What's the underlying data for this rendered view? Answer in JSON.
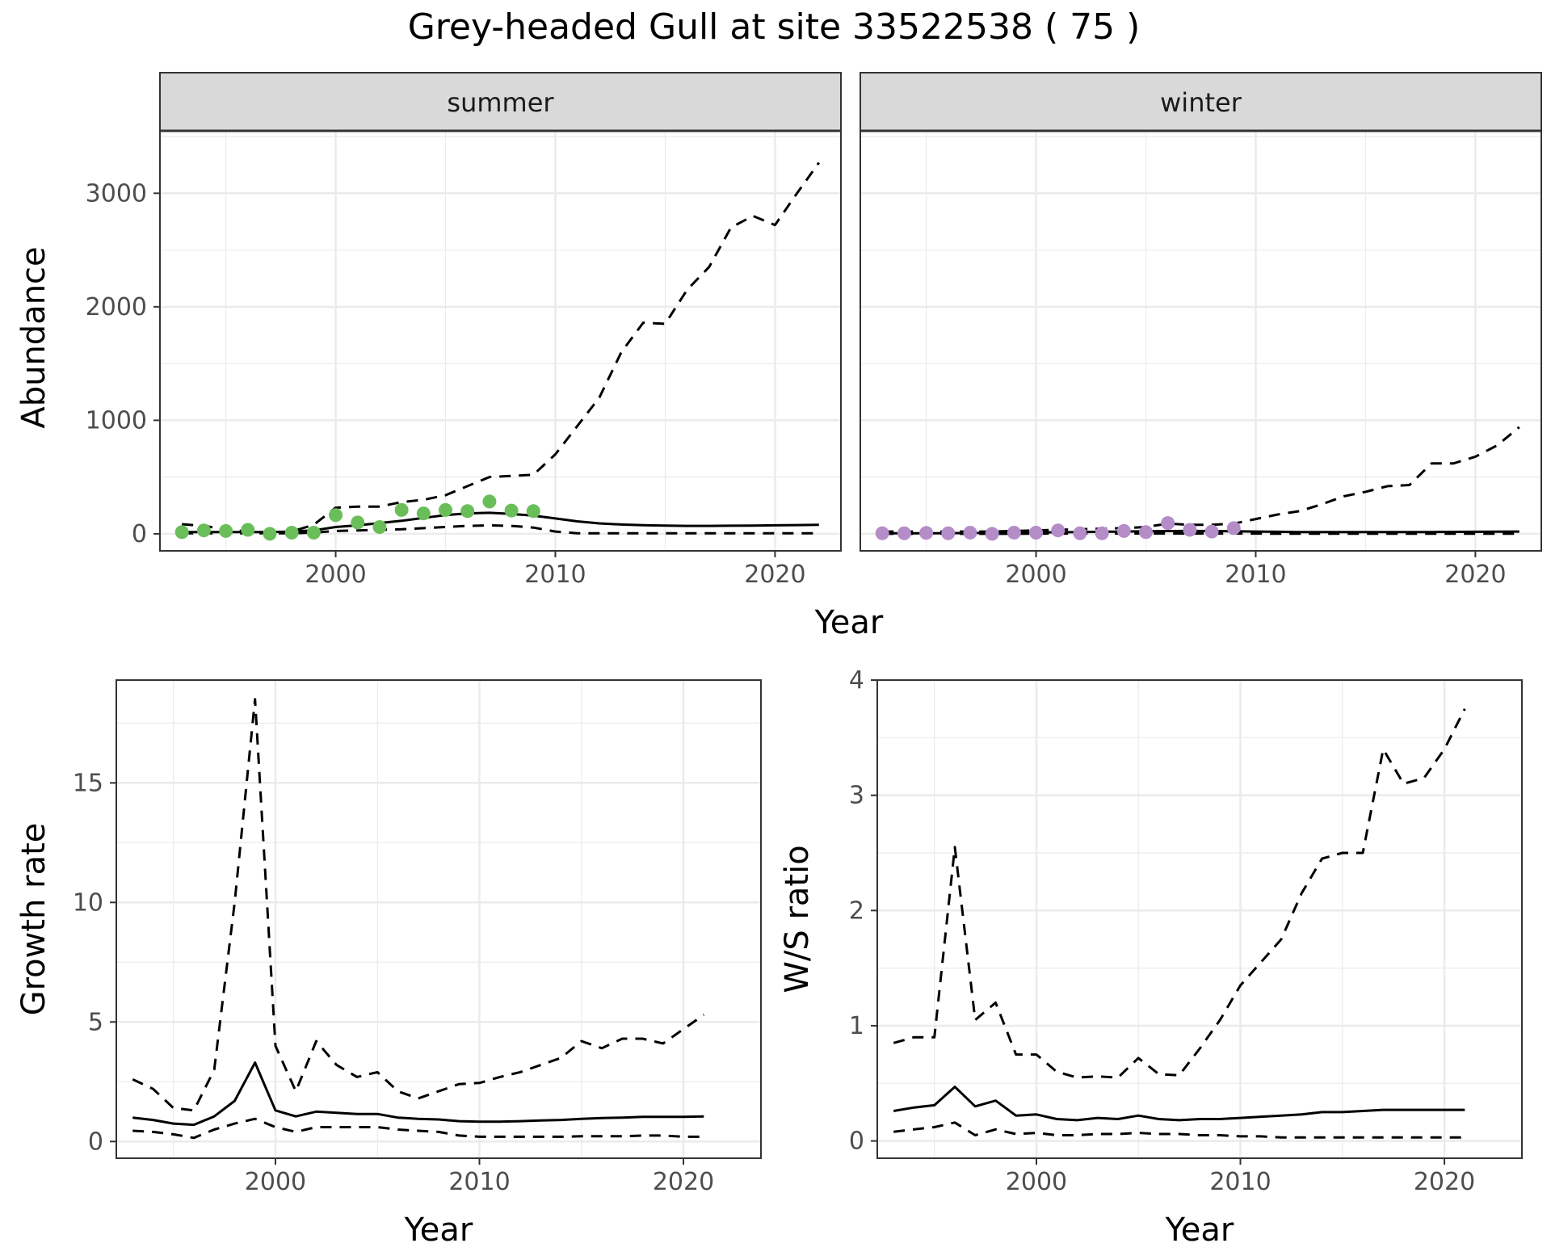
{
  "title": "Grey-headed Gull at site 33522538 ( 75 )",
  "colors": {
    "summer_points": "#6ABE5A",
    "winter_points": "#B48CC8",
    "line": "#000000",
    "grid": "#EBEBEB",
    "strip_bg": "#D9D9D9",
    "panel_border": "#333333"
  },
  "chart_data": [
    {
      "type": "line",
      "panel": "summer",
      "strip_label": "summer",
      "xlabel": "Year",
      "ylabel": "Abundance",
      "xlim": [
        1992,
        2023
      ],
      "ylim": [
        -150,
        3550
      ],
      "xticks": [
        2000,
        2010,
        2020
      ],
      "yticks": [
        0,
        1000,
        2000,
        3000
      ],
      "grid": true,
      "series": [
        {
          "style": "solid",
          "x": [
            1993,
            1994,
            1995,
            1996,
            1997,
            1998,
            1999,
            2000,
            2001,
            2002,
            2003,
            2004,
            2005,
            2006,
            2007,
            2008,
            2009,
            2010,
            2011,
            2012,
            2013,
            2014,
            2015,
            2016,
            2017,
            2018,
            2019,
            2020,
            2021,
            2022
          ],
          "y": [
            15,
            15,
            15,
            15,
            15,
            20,
            30,
            60,
            75,
            95,
            115,
            140,
            165,
            180,
            185,
            175,
            160,
            135,
            110,
            92,
            82,
            76,
            72,
            70,
            70,
            71,
            73,
            75,
            77,
            80
          ]
        },
        {
          "style": "dashed",
          "x": [
            1993,
            1994,
            1995,
            1996,
            1997,
            1998,
            1999,
            2000,
            2001,
            2002,
            2003,
            2004,
            2005,
            2006,
            2007,
            2008,
            2009,
            2010,
            2011,
            2012,
            2013,
            2014,
            2015,
            2016,
            2017,
            2018,
            2019,
            2020,
            2021,
            2022
          ],
          "y": [
            85,
            70,
            40,
            20,
            10,
            20,
            80,
            230,
            240,
            240,
            280,
            300,
            340,
            420,
            500,
            510,
            520,
            700,
            950,
            1200,
            1600,
            1860,
            1850,
            2150,
            2350,
            2700,
            2800,
            2720,
            3000,
            3270
          ]
        },
        {
          "style": "dashed",
          "x": [
            1993,
            1994,
            1995,
            1996,
            1997,
            1998,
            1999,
            2000,
            2001,
            2002,
            2003,
            2004,
            2005,
            2006,
            2007,
            2008,
            2009,
            2010,
            2011,
            2012,
            2013,
            2014,
            2015,
            2016,
            2017,
            2018,
            2019,
            2020,
            2021,
            2022
          ],
          "y": [
            5,
            5,
            5,
            5,
            5,
            5,
            10,
            25,
            30,
            35,
            40,
            50,
            60,
            70,
            75,
            70,
            55,
            20,
            5,
            5,
            5,
            5,
            5,
            5,
            5,
            5,
            5,
            5,
            5,
            5
          ]
        },
        {
          "style": "points",
          "x": [
            1993,
            1994,
            1995,
            1996,
            1997,
            1998,
            1999,
            2000,
            2001,
            2002,
            2003,
            2004,
            2005,
            2006,
            2007,
            2008,
            2009
          ],
          "y": [
            15,
            30,
            25,
            35,
            0,
            10,
            10,
            165,
            100,
            60,
            210,
            180,
            210,
            200,
            285,
            205,
            200
          ]
        }
      ]
    },
    {
      "type": "line",
      "panel": "winter",
      "strip_label": "winter",
      "xlabel": "Year",
      "ylabel": "Abundance",
      "xlim": [
        1992,
        2023
      ],
      "ylim": [
        -150,
        3550
      ],
      "xticks": [
        2000,
        2010,
        2020
      ],
      "yticks": [
        0,
        1000,
        2000,
        3000
      ],
      "grid": true,
      "series": [
        {
          "style": "solid",
          "x": [
            1993,
            1994,
            1995,
            1996,
            1997,
            1998,
            1999,
            2000,
            2001,
            2002,
            2003,
            2004,
            2005,
            2006,
            2007,
            2008,
            2009,
            2010,
            2011,
            2012,
            2013,
            2014,
            2015,
            2016,
            2017,
            2018,
            2019,
            2020,
            2021,
            2022
          ],
          "y": [
            5,
            5,
            5,
            6,
            7,
            8,
            10,
            12,
            14,
            16,
            18,
            20,
            22,
            24,
            25,
            24,
            22,
            20,
            18,
            16,
            15,
            15,
            15,
            15,
            16,
            16,
            17,
            18,
            19,
            20
          ]
        },
        {
          "style": "dashed",
          "x": [
            1993,
            1994,
            1995,
            1996,
            1997,
            1998,
            1999,
            2000,
            2001,
            2002,
            2003,
            2004,
            2005,
            2006,
            2007,
            2008,
            2009,
            2010,
            2011,
            2012,
            2013,
            2014,
            2015,
            2016,
            2017,
            2018,
            2019,
            2020,
            2021,
            2022
          ],
          "y": [
            20,
            20,
            20,
            20,
            20,
            20,
            25,
            30,
            35,
            40,
            45,
            50,
            60,
            90,
            80,
            80,
            90,
            130,
            170,
            200,
            260,
            330,
            370,
            420,
            430,
            620,
            620,
            680,
            780,
            940
          ]
        },
        {
          "style": "dashed",
          "x": [
            1993,
            1994,
            1995,
            1996,
            1997,
            1998,
            1999,
            2000,
            2001,
            2002,
            2003,
            2004,
            2005,
            2006,
            2007,
            2008,
            2009,
            2010,
            2011,
            2012,
            2013,
            2014,
            2015,
            2016,
            2017,
            2018,
            2019,
            2020,
            2021,
            2022
          ],
          "y": [
            0,
            0,
            0,
            0,
            0,
            0,
            0,
            2,
            2,
            2,
            2,
            2,
            3,
            3,
            3,
            3,
            3,
            2,
            1,
            1,
            1,
            1,
            1,
            1,
            1,
            1,
            1,
            1,
            1,
            1
          ]
        },
        {
          "style": "points",
          "x": [
            1993,
            1994,
            1995,
            1996,
            1997,
            1998,
            1999,
            2000,
            2001,
            2002,
            2003,
            2004,
            2005,
            2006,
            2007,
            2008,
            2009
          ],
          "y": [
            5,
            5,
            8,
            5,
            10,
            0,
            10,
            10,
            30,
            5,
            5,
            25,
            15,
            95,
            35,
            20,
            50
          ]
        }
      ]
    },
    {
      "type": "line",
      "panel": "growth",
      "xlabel": "Year",
      "ylabel": "Growth rate",
      "xlim": [
        1992.2,
        2023.8
      ],
      "ylim": [
        -0.7,
        19.3
      ],
      "xticks": [
        2000,
        2010,
        2020
      ],
      "yticks": [
        0,
        5,
        10,
        15
      ],
      "grid": true,
      "series": [
        {
          "style": "solid",
          "x": [
            1993,
            1994,
            1995,
            1996,
            1997,
            1998,
            1999,
            2000,
            2001,
            2002,
            2003,
            2004,
            2005,
            2006,
            2007,
            2008,
            2009,
            2010,
            2011,
            2012,
            2013,
            2014,
            2015,
            2016,
            2017,
            2018,
            2019,
            2020,
            2021
          ],
          "y": [
            1.0,
            0.9,
            0.75,
            0.7,
            1.05,
            1.7,
            3.3,
            1.3,
            1.05,
            1.25,
            1.2,
            1.15,
            1.15,
            1.0,
            0.95,
            0.92,
            0.85,
            0.83,
            0.83,
            0.85,
            0.88,
            0.9,
            0.95,
            0.98,
            1.0,
            1.03,
            1.03,
            1.03,
            1.05
          ]
        },
        {
          "style": "dashed",
          "x": [
            1993,
            1994,
            1995,
            1996,
            1997,
            1998,
            1999,
            2000,
            2001,
            2002,
            2003,
            2004,
            2005,
            2006,
            2007,
            2008,
            2009,
            2010,
            2011,
            2012,
            2013,
            2014,
            2015,
            2016,
            2017,
            2018,
            2019,
            2020,
            2021
          ],
          "y": [
            2.6,
            2.2,
            1.4,
            1.3,
            3.0,
            10.0,
            18.5,
            4.0,
            2.1,
            4.2,
            3.2,
            2.7,
            2.9,
            2.1,
            1.8,
            2.1,
            2.4,
            2.45,
            2.7,
            2.9,
            3.2,
            3.5,
            4.2,
            3.9,
            4.3,
            4.3,
            4.1,
            4.7,
            5.3
          ]
        },
        {
          "style": "dashed",
          "x": [
            1993,
            1994,
            1995,
            1996,
            1997,
            1998,
            1999,
            2000,
            2001,
            2002,
            2003,
            2004,
            2005,
            2006,
            2007,
            2008,
            2009,
            2010,
            2011,
            2012,
            2013,
            2014,
            2015,
            2016,
            2017,
            2018,
            2019,
            2020,
            2021
          ],
          "y": [
            0.45,
            0.4,
            0.3,
            0.15,
            0.5,
            0.75,
            0.95,
            0.6,
            0.4,
            0.6,
            0.6,
            0.6,
            0.6,
            0.5,
            0.45,
            0.4,
            0.25,
            0.2,
            0.2,
            0.2,
            0.2,
            0.2,
            0.22,
            0.22,
            0.22,
            0.25,
            0.25,
            0.2,
            0.2
          ]
        }
      ]
    },
    {
      "type": "line",
      "panel": "ratio",
      "xlabel": "Year",
      "ylabel": "W/S ratio",
      "xlim": [
        1992.2,
        2023.8
      ],
      "ylim": [
        -0.15,
        4.0
      ],
      "xticks": [
        2000,
        2010,
        2020
      ],
      "yticks": [
        0,
        1,
        2,
        3,
        4
      ],
      "grid": true,
      "series": [
        {
          "style": "solid",
          "x": [
            1993,
            1994,
            1995,
            1996,
            1997,
            1998,
            1999,
            2000,
            2001,
            2002,
            2003,
            2004,
            2005,
            2006,
            2007,
            2008,
            2009,
            2010,
            2011,
            2012,
            2013,
            2014,
            2015,
            2016,
            2017,
            2018,
            2019,
            2020,
            2021
          ],
          "y": [
            0.26,
            0.29,
            0.31,
            0.47,
            0.3,
            0.35,
            0.22,
            0.23,
            0.19,
            0.18,
            0.2,
            0.19,
            0.22,
            0.19,
            0.18,
            0.19,
            0.19,
            0.2,
            0.21,
            0.22,
            0.23,
            0.25,
            0.25,
            0.26,
            0.27,
            0.27,
            0.27,
            0.27,
            0.27
          ]
        },
        {
          "style": "dashed",
          "x": [
            1993,
            1994,
            1995,
            1996,
            1997,
            1998,
            1999,
            2000,
            2001,
            2002,
            2003,
            2004,
            2005,
            2006,
            2007,
            2008,
            2009,
            2010,
            2011,
            2012,
            2013,
            2014,
            2015,
            2016,
            2017,
            2018,
            2019,
            2020,
            2021
          ],
          "y": [
            0.85,
            0.9,
            0.9,
            2.55,
            1.05,
            1.2,
            0.75,
            0.75,
            0.6,
            0.55,
            0.56,
            0.55,
            0.72,
            0.58,
            0.57,
            0.8,
            1.05,
            1.35,
            1.55,
            1.75,
            2.15,
            2.45,
            2.5,
            2.5,
            3.4,
            3.1,
            3.15,
            3.4,
            3.75
          ]
        },
        {
          "style": "dashed",
          "x": [
            1993,
            1994,
            1995,
            1996,
            1997,
            1998,
            1999,
            2000,
            2001,
            2002,
            2003,
            2004,
            2005,
            2006,
            2007,
            2008,
            2009,
            2010,
            2011,
            2012,
            2013,
            2014,
            2015,
            2016,
            2017,
            2018,
            2019,
            2020,
            2021
          ],
          "y": [
            0.08,
            0.1,
            0.12,
            0.16,
            0.05,
            0.1,
            0.06,
            0.07,
            0.05,
            0.05,
            0.06,
            0.06,
            0.07,
            0.06,
            0.06,
            0.05,
            0.05,
            0.04,
            0.04,
            0.03,
            0.03,
            0.03,
            0.03,
            0.03,
            0.03,
            0.03,
            0.03,
            0.03,
            0.03
          ]
        }
      ]
    }
  ]
}
